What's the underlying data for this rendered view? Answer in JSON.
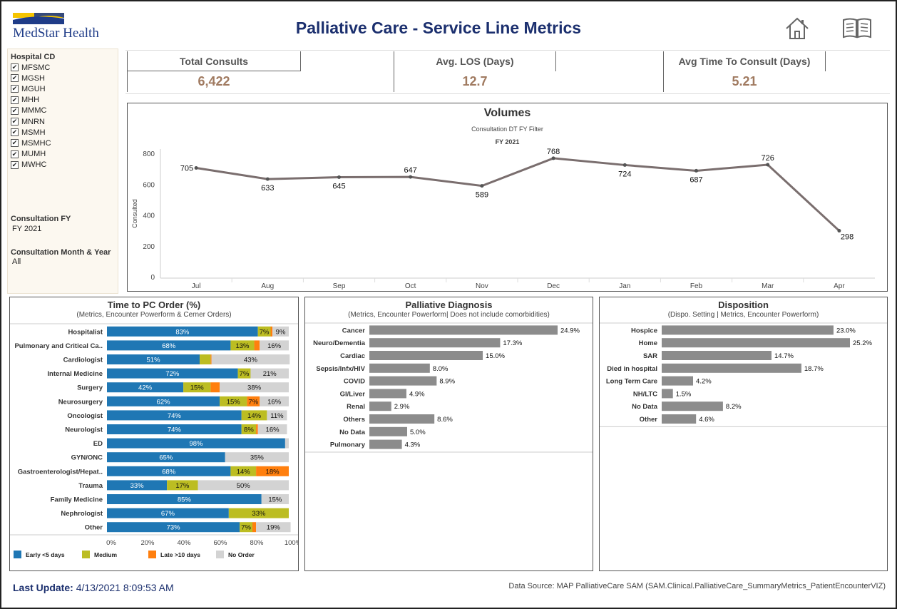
{
  "header": {
    "logo_text": "MedStar Health",
    "title": "Palliative Care - Service Line Metrics"
  },
  "filters": {
    "hospital_label": "Hospital CD",
    "hospitals": [
      "MFSMC",
      "MGSH",
      "MGUH",
      "MHH",
      "MMMC",
      "MNRN",
      "MSMH",
      "MSMHC",
      "MUMH",
      "MWHC"
    ],
    "fy_label": "Consultation FY",
    "fy_value": "FY 2021",
    "month_label": "Consultation Month & Year",
    "month_value": "All"
  },
  "kpis": [
    {
      "label": "Total Consults",
      "value": "6,422"
    },
    {
      "label": "Avg. LOS (Days)",
      "value": "12.7"
    },
    {
      "label": "Avg Time To Consult (Days)",
      "value": "5.21"
    }
  ],
  "chart_data": [
    {
      "type": "line",
      "title": "Volumes",
      "subtitle": "Consultation DT FY Filter",
      "subtitle2": "FY 2021",
      "ylabel": "Consulted",
      "ylim": [
        0,
        800
      ],
      "yticks": [
        "0",
        "200",
        "400",
        "600",
        "800"
      ],
      "categories": [
        "Jul",
        "Aug",
        "Sep",
        "Oct",
        "Nov",
        "Dec",
        "Jan",
        "Feb",
        "Mar",
        "Apr"
      ],
      "values": [
        705,
        633,
        645,
        647,
        589,
        768,
        724,
        687,
        726,
        298
      ],
      "labels": [
        "705",
        "633",
        "645",
        "647",
        "589",
        "768",
        "724",
        "687",
        "726",
        "298"
      ],
      "color": "#7a6e6e"
    },
    {
      "type": "bar",
      "orientation": "horizontal-stacked",
      "title": "Time to PC Order (%)",
      "subtitle": "(Metrics, Encounter Powerform & Cerner Orders)",
      "categories": [
        "Hospitalist",
        "Pulmonary and Critical Ca..",
        "Cardiologist",
        "Internal Medicine",
        "Surgery",
        "Neurosurgery",
        "Oncologist",
        "Neurologist",
        "ED",
        "GYN/ONC",
        "Gastroenterologist/Hepat..",
        "Trauma",
        "Family Medicine",
        "Nephrologist",
        "Other"
      ],
      "xticks": [
        "0%",
        "20%",
        "40%",
        "60%",
        "80%",
        "100%"
      ],
      "series": [
        {
          "name": "Early <5 days",
          "color": "#1f77b4",
          "values": [
            83,
            68,
            51,
            72,
            42,
            62,
            74,
            74,
            98,
            65,
            68,
            33,
            85,
            67,
            73
          ],
          "labels": [
            "83%",
            "68%",
            "51%",
            "72%",
            "42%",
            "62%",
            "74%",
            "74%",
            "98%",
            "65%",
            "68%",
            "33%",
            "85%",
            "67%",
            "73%"
          ]
        },
        {
          "name": "Medium",
          "color": "#bcbd22",
          "values": [
            7,
            13,
            6,
            7,
            15,
            15,
            14,
            8,
            0,
            0,
            14,
            17,
            0,
            33,
            7
          ],
          "labels": [
            "7%",
            "13%",
            "",
            "7%",
            "15%",
            "15%",
            "14%",
            "8%",
            "",
            "",
            "14%",
            "17%",
            "",
            "33%",
            "7%"
          ]
        },
        {
          "name": "Late >10 days",
          "color": "#ff7f0e",
          "values": [
            1,
            3,
            0.5,
            0,
            5,
            7,
            0,
            1,
            0,
            0,
            18,
            0,
            0,
            0,
            2
          ],
          "labels": [
            "",
            "",
            "",
            "",
            "",
            "7%",
            "",
            "",
            "",
            "",
            "18%",
            "",
            "",
            "",
            ""
          ]
        },
        {
          "name": "No Order",
          "color": "#d3d3d3",
          "values": [
            9,
            16,
            43,
            21,
            38,
            16,
            11,
            16,
            2,
            35,
            0,
            50,
            15,
            0,
            19
          ],
          "labels": [
            "9%",
            "16%",
            "43%",
            "21%",
            "38%",
            "16%",
            "11%",
            "16%",
            "",
            "35%",
            "",
            "50%",
            "15%",
            "",
            "19%"
          ]
        }
      ]
    },
    {
      "type": "bar",
      "orientation": "horizontal",
      "title": "Palliative Diagnosis",
      "subtitle": "(Metrics, Encounter Powerform|  Does not include comorbidities)",
      "categories": [
        "Cancer",
        "Neuro/Dementia",
        "Cardiac",
        "Sepsis/Infx/HIV",
        "COVID",
        "GI/Liver",
        "Renal",
        "Others",
        "No Data",
        "Pulmonary"
      ],
      "values": [
        24.9,
        17.3,
        15.0,
        8.0,
        8.9,
        4.9,
        2.9,
        8.6,
        5.0,
        4.3
      ],
      "labels": [
        "24.9%",
        "17.3%",
        "15.0%",
        "8.0%",
        "8.9%",
        "4.9%",
        "2.9%",
        "8.6%",
        "5.0%",
        "4.3%"
      ],
      "color": "#8c8c8c"
    },
    {
      "type": "bar",
      "orientation": "horizontal",
      "title": "Disposition",
      "subtitle": "(Dispo. Setting | Metrics, Encounter Powerform)",
      "categories": [
        "Hospice",
        "Home",
        "SAR",
        "Died in hospital",
        "Long Term Care",
        "NH/LTC",
        "No Data",
        "Other"
      ],
      "values": [
        23.0,
        25.2,
        14.7,
        18.7,
        4.2,
        1.5,
        8.2,
        4.6
      ],
      "labels": [
        "23.0%",
        "25.2%",
        "14.7%",
        "18.7%",
        "4.2%",
        "1.5%",
        "8.2%",
        "4.6%"
      ],
      "color": "#8c8c8c"
    }
  ],
  "footer": {
    "last_update_label": "Last Update:",
    "last_update_value": "4/13/2021 8:09:53 AM",
    "data_source": "Data Source: MAP PalliativeCare SAM (SAM.Clinical.PalliativeCare_SummaryMetrics_PatientEncounterVIZ)"
  },
  "colors": {
    "accent": "#1b2f6e",
    "kpi_value": "#a07a60",
    "logo_yellow": "#f5c400",
    "logo_blue": "#1f3c88"
  }
}
